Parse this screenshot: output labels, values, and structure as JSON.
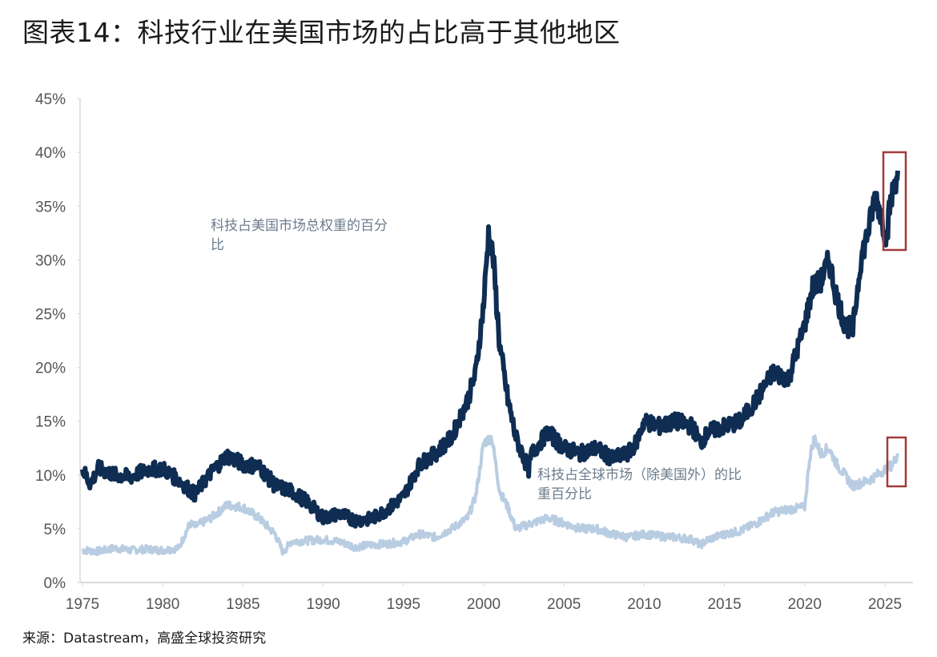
{
  "title": "图表14：科技行业在美国市场的占比高于其他地区",
  "source": "来源：Datastream，高盛全球投资研究",
  "colors": {
    "us_series": "#0f2d52",
    "global_series": "#b9cde2",
    "highlight_box": "#a23a3a",
    "axis": "#d9d9d9",
    "tick_text": "#555555",
    "annotation_text": "#6b7c8c"
  },
  "annotations": {
    "us": {
      "line1": "科技占美国市场总权重的百分",
      "line2": "比"
    },
    "global": {
      "line1": "科技占全球市场（除美国外）的比",
      "line2": "重百分比"
    }
  },
  "chart_data": {
    "type": "line",
    "title": "图表14：科技行业在美国市场的占比高于其他地区",
    "xlabel": "",
    "ylabel": "",
    "xlim": [
      1975,
      2026
    ],
    "ylim": [
      0,
      45
    ],
    "x_ticks": [
      "1975",
      "1980",
      "1985",
      "1990",
      "1995",
      "2000",
      "2005",
      "2010",
      "2015",
      "2020",
      "2025"
    ],
    "y_ticks": [
      "0%",
      "5%",
      "10%",
      "15%",
      "20%",
      "25%",
      "30%",
      "35%",
      "40%",
      "45%"
    ],
    "grid": false,
    "legend": "inline annotations",
    "series": [
      {
        "name": "科技占美国市场总权重的百分比",
        "x": [
          1975,
          1975.5,
          1976,
          1977,
          1978,
          1979,
          1980,
          1981,
          1982,
          1983,
          1984,
          1985,
          1986,
          1987,
          1988,
          1989,
          1990,
          1991,
          1992,
          1993,
          1994,
          1995,
          1996,
          1997,
          1998,
          1999,
          1999.5,
          2000,
          2000.3,
          2000.6,
          2001,
          2001.5,
          2002,
          2002.8,
          2003,
          2004,
          2005,
          2006,
          2007,
          2008,
          2009,
          2009.5,
          2010,
          2011,
          2012,
          2013,
          2013.5,
          2014,
          2015,
          2016,
          2017,
          2018,
          2019,
          2020,
          2020.5,
          2021,
          2021.5,
          2022,
          2022.5,
          2023,
          2023.5,
          2024,
          2024.4,
          2024.8,
          2025.1,
          2025.3,
          2025.6,
          2025.8
        ],
        "values": [
          10.5,
          9.2,
          10.6,
          10.0,
          9.8,
          10.5,
          10.6,
          9.5,
          8.2,
          10.2,
          11.8,
          11.0,
          10.8,
          9.0,
          8.5,
          7.5,
          6.0,
          6.4,
          5.8,
          5.9,
          6.8,
          8.0,
          11.0,
          12.0,
          13.5,
          17.0,
          19.5,
          26.0,
          32.5,
          30.0,
          22.0,
          17.0,
          13.5,
          10.5,
          12.0,
          14.0,
          12.5,
          12.0,
          12.5,
          11.5,
          12.0,
          13.0,
          15.0,
          14.5,
          15.0,
          14.5,
          13.0,
          14.0,
          14.5,
          15.0,
          17.0,
          19.5,
          19.0,
          24.0,
          27.5,
          28.0,
          30.0,
          26.5,
          24.0,
          23.5,
          30.0,
          33.0,
          36.0,
          34.0,
          32.0,
          35.0,
          37.0,
          38.3
        ]
      },
      {
        "name": "科技占全球市场（除美国外）的比重百分比",
        "x": [
          1975,
          1976,
          1977,
          1978,
          1979,
          1980,
          1981,
          1981.7,
          1982,
          1983,
          1984,
          1985,
          1986,
          1987,
          1987.5,
          1988,
          1989,
          1990,
          1991,
          1992,
          1993,
          1994,
          1995,
          1996,
          1997,
          1998,
          1999,
          1999.5,
          2000,
          2000.5,
          2001,
          2001.5,
          2002,
          2003,
          2004,
          2005,
          2006,
          2007,
          2008,
          2009,
          2010,
          2011,
          2012,
          2013,
          2013.5,
          2014,
          2015,
          2016,
          2017,
          2018,
          2019,
          2020,
          2020.3,
          2020.6,
          2021,
          2021.5,
          2022,
          2023,
          2024,
          2025,
          2025.5,
          2025.8
        ],
        "values": [
          3.0,
          2.9,
          3.2,
          3.0,
          3.1,
          3.0,
          3.2,
          5.5,
          5.2,
          6.0,
          7.2,
          7.0,
          6.0,
          4.5,
          2.8,
          3.8,
          3.9,
          4.0,
          3.8,
          3.3,
          3.5,
          3.6,
          3.8,
          4.5,
          4.2,
          5.0,
          6.0,
          8.0,
          13.0,
          13.5,
          8.5,
          7.0,
          5.0,
          5.5,
          6.0,
          5.5,
          5.0,
          5.0,
          4.5,
          4.2,
          4.5,
          4.3,
          4.2,
          4.0,
          3.5,
          4.0,
          4.5,
          4.8,
          5.5,
          6.5,
          6.8,
          7.0,
          11.5,
          13.5,
          12.0,
          12.5,
          11.0,
          9.0,
          9.5,
          10.5,
          11.0,
          12.0
        ]
      }
    ],
    "highlights": [
      {
        "series": "科技占美国市场总权重的百分比",
        "x_range": [
          2025.0,
          2026.3
        ],
        "y_range": [
          31,
          40
        ]
      },
      {
        "series": "科技占全球市场（除美国外）的比重百分比",
        "x_range": [
          2025.2,
          2026.3
        ],
        "y_range": [
          9,
          13.5
        ]
      }
    ]
  }
}
